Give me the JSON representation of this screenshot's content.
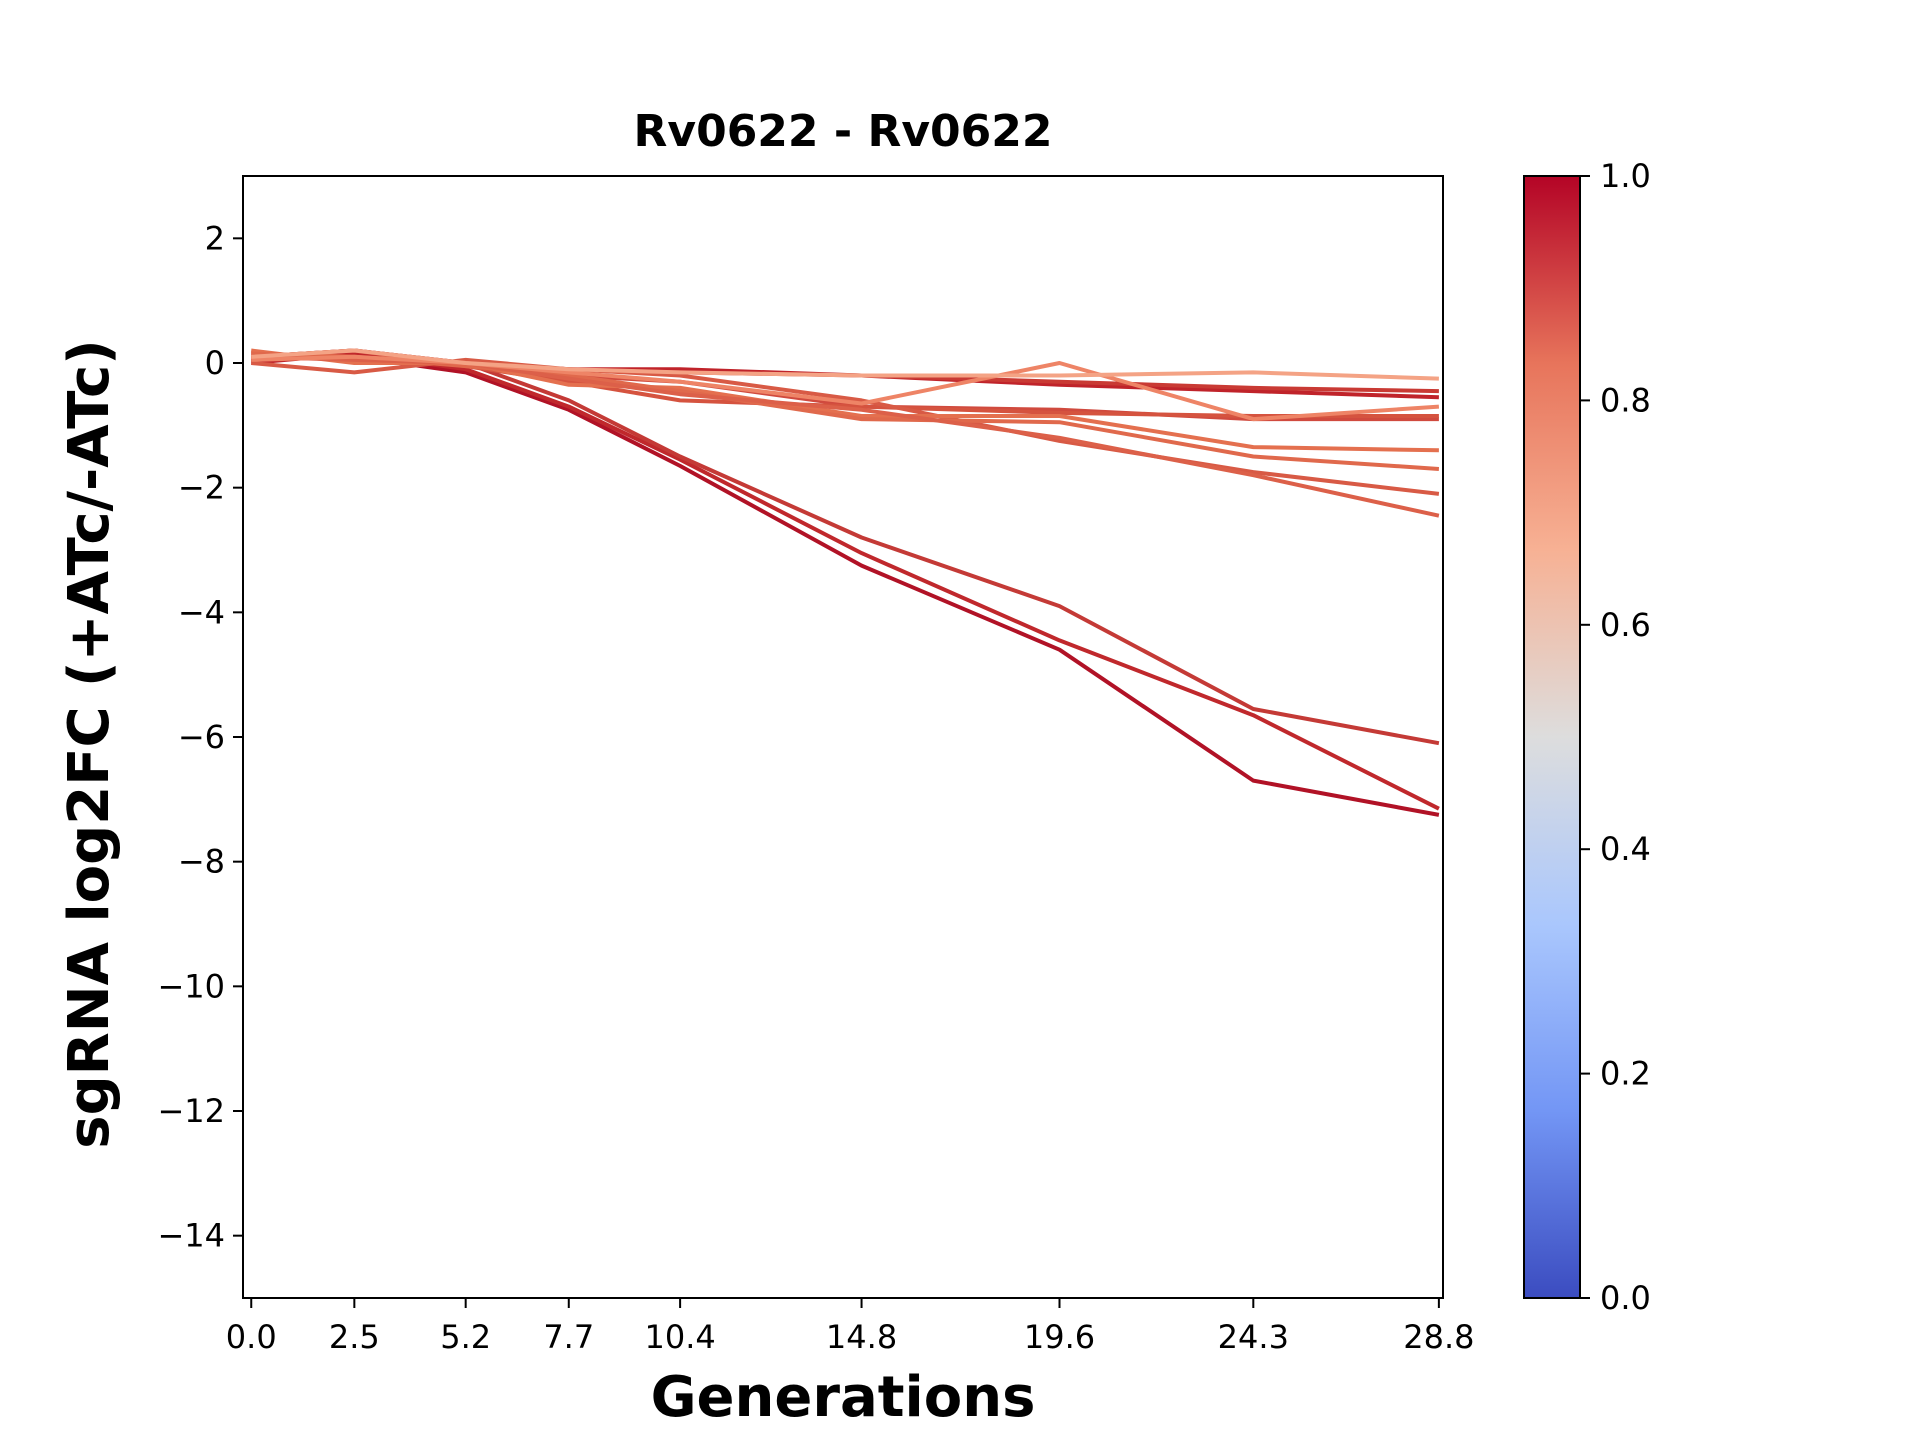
{
  "chart_data": {
    "type": "line",
    "title": "Rv0622 - Rv0622",
    "xlabel": "Generations",
    "ylabel": "sgRNA log2FC (+ATc/-ATc)",
    "x": [
      0.0,
      2.5,
      5.2,
      7.7,
      10.4,
      14.8,
      19.6,
      24.3,
      28.8
    ],
    "x_tick_labels": [
      "0.0",
      "2.5",
      "5.2",
      "7.7",
      "10.4",
      "14.8",
      "19.6",
      "24.3",
      "28.8"
    ],
    "xlim": [
      -0.2,
      28.9
    ],
    "ylim": [
      -15,
      3
    ],
    "y_ticks": [
      2,
      0,
      -2,
      -4,
      -6,
      -8,
      -10,
      -12,
      -14
    ],
    "y_tick_labels": [
      "2",
      "0",
      "−2",
      "−4",
      "−6",
      "−8",
      "−10",
      "−12",
      "−14"
    ],
    "grid": false,
    "colorbar": {
      "colormap": "coolwarm",
      "range": [
        0.0,
        1.0
      ],
      "ticks": [
        0.0,
        0.2,
        0.4,
        0.6,
        0.8,
        1.0
      ],
      "tick_labels": [
        "0.0",
        "0.2",
        "0.4",
        "0.6",
        "0.8",
        "1.0"
      ],
      "stops": [
        "#3b4cc0",
        "#7396f5",
        "#aac7fd",
        "#dddddd",
        "#f7b194",
        "#e7745b",
        "#b40426"
      ]
    },
    "series": [
      {
        "color": "#b11226",
        "values": [
          0.05,
          0.1,
          -0.15,
          -0.75,
          -1.65,
          -3.25,
          -4.6,
          -6.7,
          -7.25
        ]
      },
      {
        "color": "#c0282c",
        "values": [
          0.0,
          0.15,
          -0.1,
          -0.7,
          -1.55,
          -3.05,
          -4.45,
          -5.65,
          -7.15
        ]
      },
      {
        "color": "#c43a36",
        "values": [
          0.1,
          0.2,
          0.0,
          -0.6,
          -1.5,
          -2.8,
          -3.9,
          -5.55,
          -6.1
        ]
      },
      {
        "color": "#c0232a",
        "values": [
          0.05,
          0.1,
          0.0,
          -0.1,
          -0.1,
          -0.2,
          -0.35,
          -0.45,
          -0.55
        ]
      },
      {
        "color": "#c93a34",
        "values": [
          0.1,
          0.2,
          0.0,
          -0.1,
          -0.15,
          -0.2,
          -0.3,
          -0.4,
          -0.45
        ]
      },
      {
        "color": "#d04a3e",
        "values": [
          0.15,
          0.05,
          0.0,
          -0.2,
          -0.3,
          -0.7,
          -0.75,
          -0.9,
          -0.9
        ]
      },
      {
        "color": "#d5533f",
        "values": [
          0.1,
          0.2,
          -0.05,
          -0.3,
          -0.6,
          -0.7,
          -0.8,
          -0.85,
          -0.85
        ]
      },
      {
        "color": "#d85a45",
        "values": [
          0.0,
          -0.15,
          0.05,
          -0.1,
          -0.2,
          -0.6,
          -1.25,
          -1.75,
          -2.1
        ]
      },
      {
        "color": "#e4704f",
        "values": [
          0.2,
          0.0,
          0.0,
          -0.35,
          -0.4,
          -0.85,
          -0.85,
          -1.35,
          -1.4
        ]
      },
      {
        "color": "#e0694c",
        "values": [
          0.15,
          0.1,
          -0.05,
          -0.2,
          -0.45,
          -0.9,
          -0.95,
          -1.5,
          -1.7
        ]
      },
      {
        "color": "#dc6049",
        "values": [
          0.1,
          0.05,
          0.0,
          -0.25,
          -0.5,
          -0.75,
          -1.2,
          -1.8,
          -2.45
        ]
      },
      {
        "color": "#ee8466",
        "values": [
          0.05,
          0.1,
          0.0,
          -0.15,
          -0.3,
          -0.65,
          0.0,
          -0.9,
          -0.7
        ]
      },
      {
        "color": "#f4a385",
        "values": [
          0.1,
          0.2,
          0.0,
          -0.1,
          -0.15,
          -0.2,
          -0.2,
          -0.15,
          -0.25
        ]
      }
    ]
  }
}
